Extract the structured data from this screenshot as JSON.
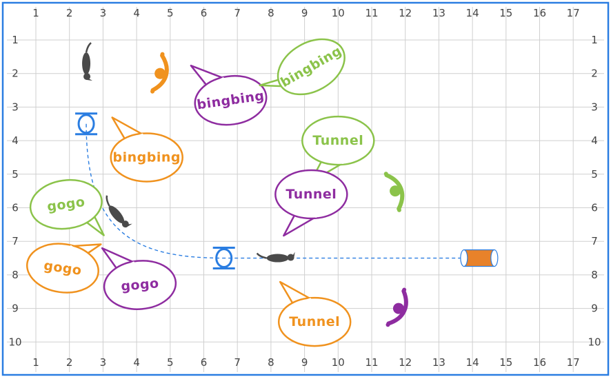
{
  "course": {
    "border_color": "#2a7de1",
    "grid_color": "#cfcfcf",
    "x_ticks": [
      "1",
      "2",
      "3",
      "4",
      "5",
      "6",
      "7",
      "8",
      "9",
      "10",
      "11",
      "12",
      "13",
      "14",
      "15",
      "16",
      "17"
    ],
    "y_ticks": [
      "1",
      "2",
      "3",
      "4",
      "5",
      "6",
      "7",
      "8",
      "9",
      "10"
    ]
  },
  "handlers": [
    {
      "name": "orange-handler",
      "color": "#f0921e",
      "x": 4.7,
      "y": 2.0
    },
    {
      "name": "green-handler",
      "color": "#8bc34a",
      "x": 11.7,
      "y": 5.5
    },
    {
      "name": "purple-handler",
      "color": "#8e2ca0",
      "x": 11.8,
      "y": 9.0
    }
  ],
  "dogs": [
    {
      "x": 2.5,
      "y": 1.7
    },
    {
      "x": 3.4,
      "y": 6.2
    },
    {
      "x": 8.2,
      "y": 7.5
    }
  ],
  "hoops": [
    {
      "x": 2.5,
      "y": 3.5,
      "color": "#2a7de1"
    },
    {
      "x": 6.6,
      "y": 7.5,
      "color": "#2a7de1"
    }
  ],
  "tunnel": {
    "x": 14.2,
    "y": 7.5,
    "fill": "#e8822a",
    "stroke": "#2a7de1"
  },
  "path_color": "#2a7de1",
  "bubbles": [
    {
      "text": "bingbing",
      "color": "#f0921e",
      "x": 4.3,
      "y": 4.5,
      "rot": 0,
      "tail": "up-left"
    },
    {
      "text": "bingbing",
      "color": "#8e2ca0",
      "x": 6.8,
      "y": 2.8,
      "rot": -8,
      "tail": "up-left"
    },
    {
      "text": "bingbing",
      "color": "#8bc34a",
      "x": 9.2,
      "y": 1.8,
      "rot": -30,
      "tail": "left"
    },
    {
      "text": "Tunnel",
      "color": "#8bc34a",
      "x": 10.0,
      "y": 4.0,
      "rot": 0,
      "tail": "down-left"
    },
    {
      "text": "Tunnel",
      "color": "#8e2ca0",
      "x": 9.2,
      "y": 5.6,
      "rot": 0,
      "tail": "down-left"
    },
    {
      "text": "Tunnel",
      "color": "#f0921e",
      "x": 9.3,
      "y": 9.4,
      "rot": 0,
      "tail": "up-left"
    },
    {
      "text": "gogo",
      "color": "#8bc34a",
      "x": 1.9,
      "y": 5.9,
      "rot": -8,
      "tail": "down-right"
    },
    {
      "text": "gogo",
      "color": "#f0921e",
      "x": 1.8,
      "y": 7.8,
      "rot": 8,
      "tail": "up-right"
    },
    {
      "text": "gogo",
      "color": "#8e2ca0",
      "x": 4.1,
      "y": 8.3,
      "rot": -5,
      "tail": "up-left"
    }
  ]
}
